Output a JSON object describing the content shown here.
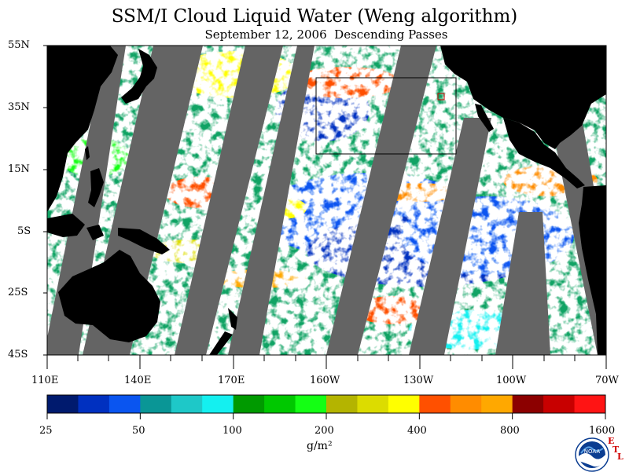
{
  "title": "SSM/I Cloud Liquid Water (Weng algorithm)",
  "subtitle": "September 12, 2006  Descending Passes",
  "latitude_labels": [
    "55N",
    "35N",
    "15N",
    "5S",
    "25S",
    "45S"
  ],
  "longitude_labels": [
    "110E",
    "140E",
    "170E",
    "160W",
    "130W",
    "100W",
    "70W"
  ],
  "colorbar": {
    "tick_labels": [
      "25",
      "50",
      "100",
      "200",
      "400",
      "800",
      "1600"
    ],
    "units": "g/m²",
    "colors": [
      "#001a6e",
      "#0030c0",
      "#0a55f0",
      "#0a9696",
      "#1ec8c8",
      "#14f0f0",
      "#009a00",
      "#00c800",
      "#14ff14",
      "#b4b400",
      "#dcdc00",
      "#ffff00",
      "#ff5000",
      "#ff8c00",
      "#ffa800",
      "#8c0000",
      "#c80000",
      "#ff1414"
    ]
  },
  "logo": {
    "name": "NOAA",
    "lab_letters": [
      "E",
      "T",
      "L"
    ]
  },
  "map": {
    "extent": {
      "lon_range": [
        "110E",
        "70W"
      ],
      "lat_range": [
        "55N",
        "45S"
      ]
    },
    "colors": {
      "land": "#000000",
      "swath_gap": "#646464",
      "clear": "#ffffff",
      "box": "#000000",
      "small_box": "#d00000"
    }
  }
}
